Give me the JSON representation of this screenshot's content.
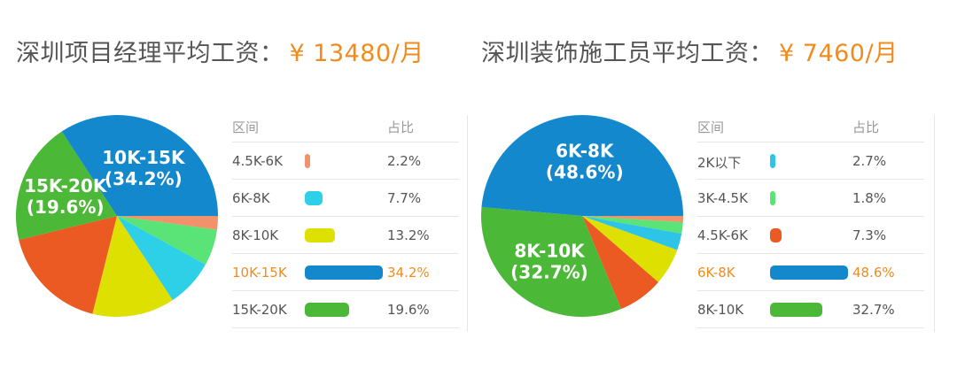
{
  "charts": [
    {
      "title_text": "深圳项目经理平均工资：",
      "salary_text": "¥ 13480/月",
      "legend_header_category": "区间",
      "legend_header_share": "占比",
      "highlight": "10K-15K",
      "chart_data": {
        "type": "pie",
        "title": "深圳项目经理平均工资：¥ 13480/月",
        "slices": [
          {
            "label": "4.5K-6K",
            "pct_text": "2.2%",
            "value": 2.2,
            "color": "#f0936a",
            "pie_label": false
          },
          {
            "label": "6K-8K",
            "pct_text": "7.7%",
            "value": 7.7,
            "color": "#2ed0e8",
            "pie_label": false
          },
          {
            "label": "8K-10K",
            "pct_text": "13.2%",
            "value": 13.2,
            "color": "#dde000",
            "pie_label": false
          },
          {
            "label": "10K-15K",
            "pct_text": "34.2%",
            "value": 34.2,
            "color": "#1488cc",
            "pie_label": true
          },
          {
            "label": "15K-20K",
            "pct_text": "19.6%",
            "value": 19.6,
            "color": "#4cb838",
            "pie_label": true
          }
        ],
        "extra_unlabeled_slices": [
          {
            "value": 5.8,
            "color": "#5ae478"
          },
          {
            "value": 17.3,
            "color": "#ea5a22"
          }
        ],
        "pie_order": [
          "4.5K-6K",
          "x:5ae478",
          "6K-8K",
          "8K-10K",
          "x:ea5a22",
          "15K-20K",
          "10K-15K"
        ]
      }
    },
    {
      "title_text": "深圳装饰施工员平均工资：",
      "salary_text": "¥ 7460/月",
      "legend_header_category": "区间",
      "legend_header_share": "占比",
      "highlight": "6K-8K",
      "chart_data": {
        "type": "pie",
        "title": "深圳装饰施工员平均工资：¥ 7460/月",
        "slices": [
          {
            "label": "2K以下",
            "pct_text": "2.7%",
            "value": 2.7,
            "color": "#2ec4e8",
            "pie_label": false
          },
          {
            "label": "3K-4.5K",
            "pct_text": "1.8%",
            "value": 1.8,
            "color": "#5ae478",
            "pie_label": false
          },
          {
            "label": "4.5K-6K",
            "pct_text": "7.3%",
            "value": 7.3,
            "color": "#ea5a22",
            "pie_label": false
          },
          {
            "label": "6K-8K",
            "pct_text": "48.6%",
            "value": 48.6,
            "color": "#1488cc",
            "pie_label": true
          },
          {
            "label": "8K-10K",
            "pct_text": "32.7%",
            "value": 32.7,
            "color": "#4cb838",
            "pie_label": true
          }
        ],
        "extra_unlabeled_slices": [
          {
            "value": 1.0,
            "color": "#f0936a"
          },
          {
            "value": 5.9,
            "color": "#dde000"
          }
        ],
        "pie_order": [
          "x:f0936a",
          "3K-4.5K",
          "2K以下",
          "x:dde000",
          "4.5K-6K",
          "8K-10K",
          "6K-8K"
        ]
      }
    }
  ]
}
